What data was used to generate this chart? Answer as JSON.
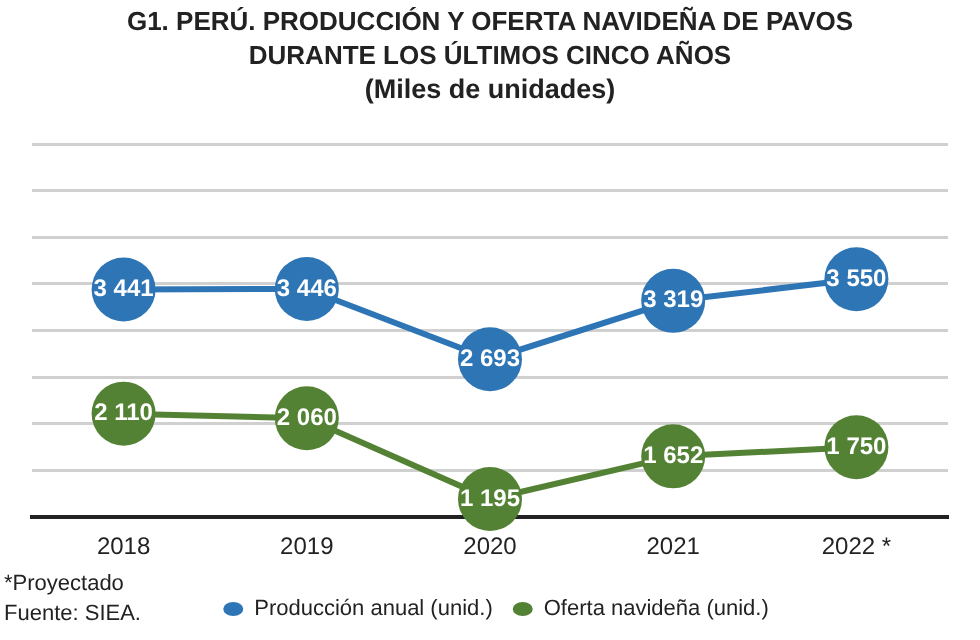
{
  "chart_data": {
    "type": "line",
    "title": "G1. PERÚ. PRODUCCIÓN Y OFERTA NAVIDEÑA DE PAVOS  DURANTE LOS ÚLTIMOS CINCO AÑOS",
    "subtitle": "(Miles de unidades)",
    "categories": [
      "2018",
      "2019",
      "2020",
      "2021",
      "2022 *"
    ],
    "series": [
      {
        "name": "Producción anual (unid.)",
        "color": "#2e75b6",
        "values": [
          3441,
          3446,
          2693,
          3319,
          3550
        ]
      },
      {
        "name": "Oferta navideña (unid.)",
        "color": "#548235",
        "values": [
          2110,
          2060,
          1195,
          1652,
          1750
        ]
      }
    ],
    "ylim": [
      1000,
      5000
    ],
    "yticks": [
      {
        "value": 1000,
        "label": null
      },
      {
        "value": 1500,
        "label": null
      },
      {
        "value": 2000,
        "label": null
      },
      {
        "value": 2500,
        "label": null
      },
      {
        "value": 3000,
        "label": null
      },
      {
        "value": 3500,
        "label": null
      },
      {
        "value": 4000,
        "label": null
      },
      {
        "value": 4500,
        "label": null
      },
      {
        "value": 5000,
        "label": null
      }
    ],
    "tick_labels": "x",
    "grid": "y",
    "legend": "bottom",
    "marker": "circle",
    "line_style": "solid",
    "data_labels": true,
    "annotations": [
      "*Proyectado",
      "Fuente: SIEA."
    ]
  }
}
